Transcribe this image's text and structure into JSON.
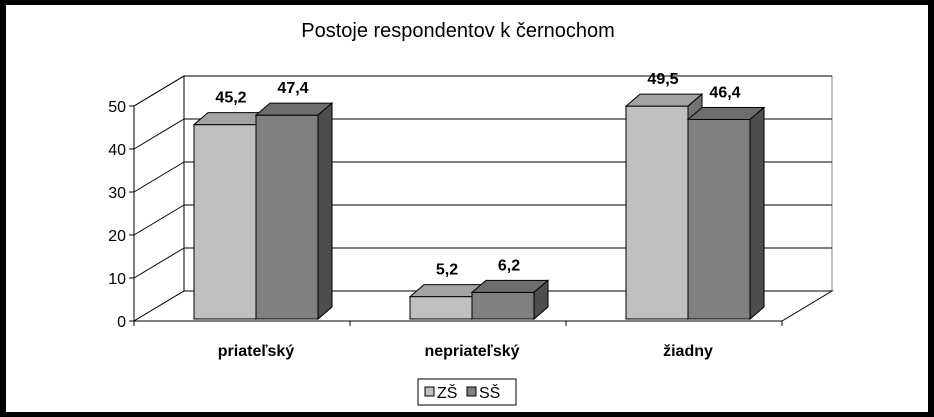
{
  "chart_data": {
    "type": "bar",
    "title": "Postoje respondentov k černochom",
    "categories": [
      "priateľský",
      "nepriateľský",
      "žiadny"
    ],
    "series": [
      {
        "name": "ZŠ",
        "values": [
          45.2,
          5.2,
          49.5
        ],
        "color": "#c0c0c0"
      },
      {
        "name": "SŠ",
        "values": [
          47.4,
          6.2,
          46.4
        ],
        "color": "#808080"
      }
    ],
    "data_labels": [
      [
        "45,2",
        "5,2",
        "49,5"
      ],
      [
        "47,4",
        "6,2",
        "46,4"
      ]
    ],
    "yticks": [
      "0",
      "10",
      "20",
      "30",
      "40",
      "50"
    ],
    "ylim": [
      0,
      50
    ],
    "grid": true,
    "legend": "bottom",
    "style": "3d-clustered-column"
  }
}
